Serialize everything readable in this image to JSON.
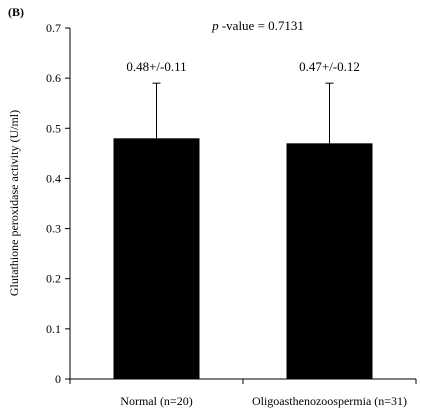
{
  "panel_label": "(B)",
  "chart_data": {
    "type": "bar",
    "title": "",
    "annotation": {
      "prefix": "p",
      "text": " -value = 0.7131"
    },
    "xlabel": "",
    "ylabel": "Glutathione peroxidase activity (U/ml)",
    "ylim": [
      0,
      0.7
    ],
    "yticks": [
      "0",
      "0.1",
      "0.2",
      "0.3",
      "0.4",
      "0.5",
      "0.6",
      "0.7"
    ],
    "categories": [
      "Normal (n=20)",
      "Oligoasthenozoospermia (n=31)"
    ],
    "values": [
      0.48,
      0.47
    ],
    "error_up": [
      0.11,
      0.12
    ],
    "data_labels": [
      "0.48+/-0.11",
      "0.47+/-0.12"
    ],
    "bar_color": "#000000",
    "grid": false,
    "legend": "none"
  }
}
